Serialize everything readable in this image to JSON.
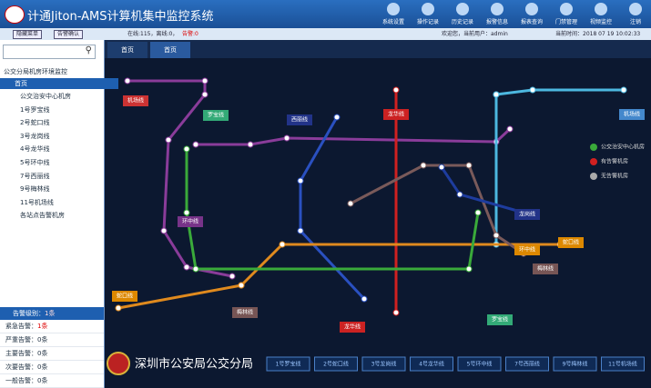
{
  "header": {
    "title": "计通Jiton-AMS计算机集中监控系统",
    "toolbar": [
      "系统设置",
      "操作记录",
      "历史记录",
      "报警信息",
      "报表查询",
      "门禁管理",
      "视频监控",
      "注销"
    ]
  },
  "status": {
    "buttons": [
      "隐藏菜单",
      "告警确认"
    ],
    "info": "在线:115，离线:0，",
    "alarm": "告警:0",
    "user": "欢迎您，当前用户：admin",
    "time": "当前时间：2018 07 19 10:02:33"
  },
  "tabs": [
    "首页",
    "首页"
  ],
  "sidebar": {
    "root": "公交分局机房环境监控",
    "selected": "首页",
    "items": [
      "公交治安中心机房",
      "1号罗宝线",
      "2号蛇口线",
      "3号龙岗线",
      "4号龙华线",
      "5号环中线",
      "7号西丽线",
      "9号梅林线",
      "11号机场线",
      "各站点告警机房"
    ]
  },
  "alarm": {
    "title": "告警级别",
    "total": "1条",
    "items": [
      {
        "label": "紧急告警：",
        "value": "1条"
      },
      {
        "label": "严重告警：",
        "value": "0条"
      },
      {
        "label": "主要告警：",
        "value": "0条"
      },
      {
        "label": "次要告警：",
        "value": "0条"
      },
      {
        "label": "一般告警：",
        "value": "0条"
      }
    ]
  },
  "map": {
    "line_labels": [
      "机场线",
      "罗宝线",
      "龙华线",
      "机场线",
      "西丽线",
      "环中线",
      "龙岗线",
      "梅林线",
      "蛇口线",
      "环中线",
      "梅林线",
      "龙华线",
      "罗宝线",
      "蛇口线"
    ],
    "legend": [
      "公交治安中心机房",
      "有告警机房",
      "无告警机房"
    ]
  },
  "footer": {
    "org": "深圳市公安局公交分局",
    "lines": [
      "1号罗宝线",
      "2号蛇口线",
      "3号龙岗线",
      "4号龙华线",
      "5号环中线",
      "7号西丽线",
      "9号梅林线",
      "11号机场线"
    ]
  }
}
